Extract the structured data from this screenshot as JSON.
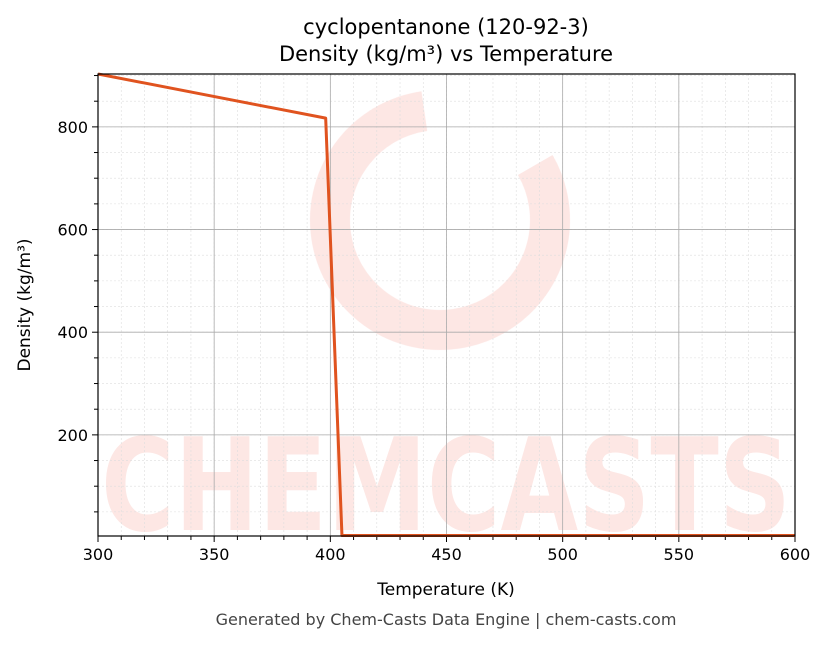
{
  "chart_data": {
    "type": "line",
    "title": "cyclopentanone (120-92-3)",
    "subtitle": "Density (kg/m³) vs Temperature",
    "xlabel": "Temperature (K)",
    "ylabel": "Density (kg/m³)",
    "xlim": [
      300,
      600
    ],
    "ylim": [
      3,
      903
    ],
    "xticks": [
      300,
      350,
      400,
      450,
      500,
      550,
      600
    ],
    "yticks": [
      200,
      400,
      600,
      800
    ],
    "grid": true,
    "series": [
      {
        "color": "#e0531f",
        "x": [
          300,
          398,
          405,
          600
        ],
        "y": [
          903,
          817,
          4,
          4
        ]
      }
    ]
  },
  "watermark": "CHEMCASTS",
  "footer": "Generated by Chem-Casts Data Engine | chem-casts.com"
}
